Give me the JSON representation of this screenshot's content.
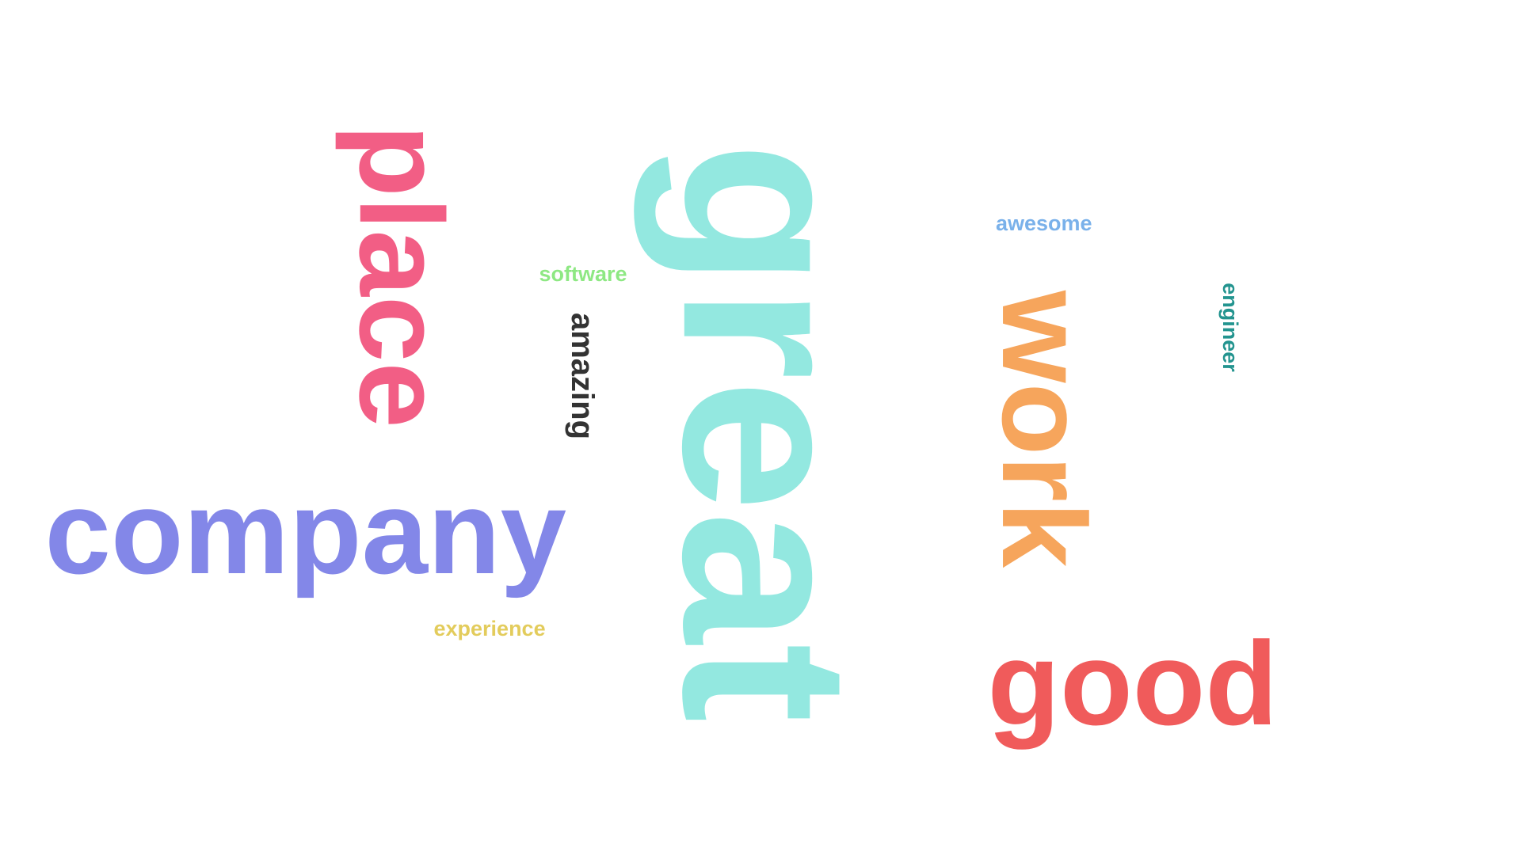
{
  "word_cloud": {
    "words": [
      {
        "id": "great",
        "text": "great",
        "color": "#93e8e0",
        "rotation": "vertical"
      },
      {
        "id": "company",
        "text": "company",
        "color": "#8387e8",
        "rotation": "horizontal"
      },
      {
        "id": "place",
        "text": "place",
        "color": "#f25e85",
        "rotation": "vertical"
      },
      {
        "id": "work",
        "text": "work",
        "color": "#f6a55c",
        "rotation": "vertical"
      },
      {
        "id": "good",
        "text": "good",
        "color": "#f05b5b",
        "rotation": "horizontal"
      },
      {
        "id": "amazing",
        "text": "amazing",
        "color": "#333333",
        "rotation": "vertical"
      },
      {
        "id": "software",
        "text": "software",
        "color": "#8ee883",
        "rotation": "horizontal"
      },
      {
        "id": "awesome",
        "text": "awesome",
        "color": "#7ab1ea",
        "rotation": "horizontal"
      },
      {
        "id": "engineer",
        "text": "engineer",
        "color": "#23948f",
        "rotation": "vertical"
      },
      {
        "id": "experience",
        "text": "experience",
        "color": "#e3cc5c",
        "rotation": "horizontal"
      }
    ]
  }
}
